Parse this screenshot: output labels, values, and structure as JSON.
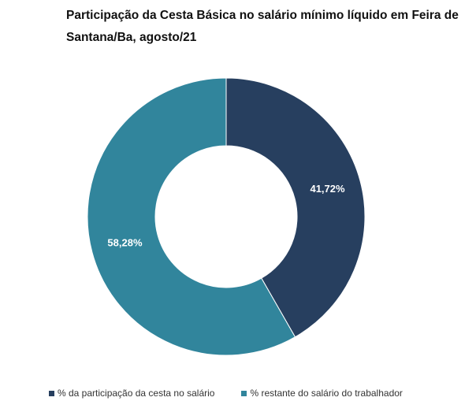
{
  "chart_data": {
    "type": "pie",
    "style": "donut",
    "title": "Participação da Cesta Básica no salário mínimo líquido em Feira de Santana/Ba, agosto/21",
    "categories": [
      "% da participação da cesta no salário",
      "% restante do salário do trabalhador"
    ],
    "values": [
      41.72,
      58.28
    ],
    "value_labels": [
      "41,72%",
      "58,28%"
    ],
    "colors": [
      "#273f5f",
      "#31859c"
    ],
    "legend": "bottom",
    "grid": false
  }
}
